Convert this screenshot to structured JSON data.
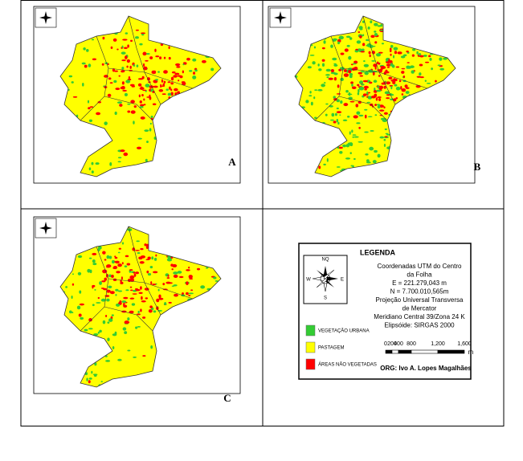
{
  "panels": [
    {
      "label": "A"
    },
    {
      "label": "B"
    },
    {
      "label": "C"
    }
  ],
  "legend": {
    "title": "LEGENDA",
    "compass": {
      "north": "NQ",
      "west": "W",
      "east": "E",
      "south": "S"
    },
    "info": [
      "Coordenadas UTM do Centro",
      "da Folha",
      "E = 221.279,043 m",
      "N = 7.700.010,565m",
      "Projeção Universal Transversa",
      "de Mercator",
      "Meridiano Central 39/Zona 24 K",
      "Elipsóide: SIRGAS 2000"
    ],
    "classes": [
      {
        "label": "VEGETAÇÃO URBANA",
        "color": "#33cc33"
      },
      {
        "label": "PASTAGEM",
        "color": "#ffff00"
      },
      {
        "label": "ÁREAS NÃO VEGETADAS",
        "color": "#ff0000"
      }
    ],
    "scale": {
      "labels": [
        "0",
        "200",
        "400",
        "800",
        "1,200",
        "1,600"
      ],
      "unit": "m"
    },
    "credit": "ORG: Ivo A. Lopes Magalhães"
  }
}
